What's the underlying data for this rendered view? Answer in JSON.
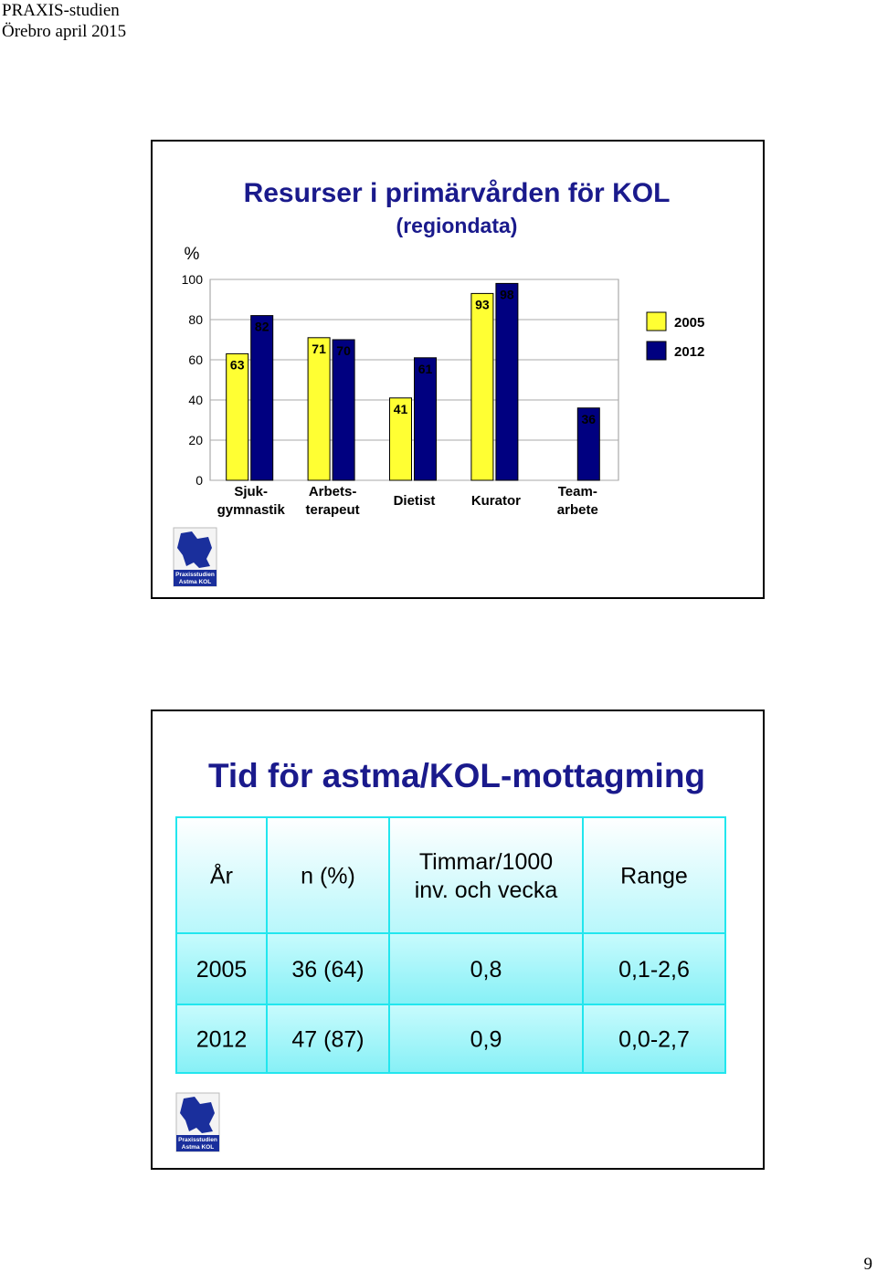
{
  "header": {
    "line1": "PRAXIS-studien",
    "line2": "Örebro april 2015"
  },
  "chart_data": {
    "type": "bar",
    "title": "Resurser i primärvården för KOL",
    "subtitle": "(regiondata)",
    "y_label": "%",
    "categories": [
      "Sjuk-\ngymnastik",
      "Arbets-\nterapeut",
      "Dietist",
      "Kurator",
      "Team-\narbete"
    ],
    "series": [
      {
        "name": "2005",
        "color": "#ffff33",
        "values": [
          63,
          71,
          41,
          93,
          null
        ]
      },
      {
        "name": "2012",
        "color": "#000080",
        "values": [
          82,
          70,
          61,
          98,
          36
        ]
      }
    ],
    "ylim": [
      0,
      100
    ],
    "yticks": [
      0,
      20,
      40,
      60,
      80,
      100
    ],
    "grid": true,
    "legend": "right"
  },
  "logo": {
    "line1": "Praxisstudien",
    "line2": "Astma  KOL"
  },
  "table": {
    "title": "Tid för astma/KOL-mottagming",
    "header": [
      "År",
      "n (%)",
      "Timmar/1000\ninv. och vecka",
      "Range"
    ],
    "rows": [
      [
        "2005",
        "36 (64)",
        "0,8",
        "0,1-2,6"
      ],
      [
        "2012",
        "47 (87)",
        "0,9",
        "0,0-2,7"
      ]
    ]
  },
  "page_number": "9"
}
